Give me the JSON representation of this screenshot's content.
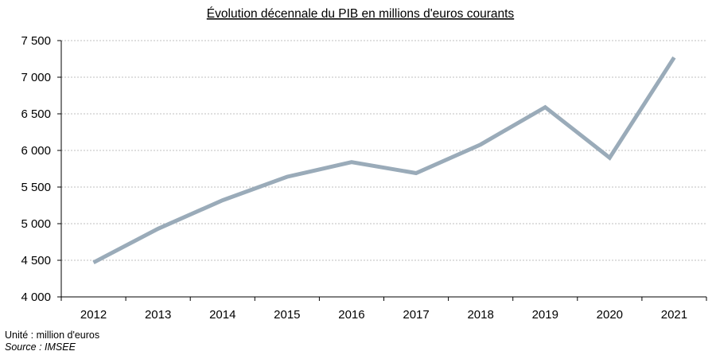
{
  "chart_data": {
    "type": "line",
    "title": "Évolution décennale du PIB en millions d'euros courants",
    "x": [
      "2012",
      "2013",
      "2014",
      "2015",
      "2016",
      "2017",
      "2018",
      "2019",
      "2020",
      "2021"
    ],
    "series": [
      {
        "values": [
          4470,
          4930,
          5320,
          5640,
          5840,
          5690,
          6080,
          6590,
          5900,
          7270
        ]
      }
    ],
    "ylim": [
      4000,
      7500
    ],
    "yticks": [
      4000,
      4500,
      5000,
      5500,
      6000,
      6500,
      7000,
      7500
    ],
    "ytick_labels": [
      "4 000",
      "4 500",
      "5 000",
      "5 500",
      "6 000",
      "6 500",
      "7 000",
      "7 500"
    ],
    "grid": true,
    "line_color": "#9aabb9",
    "grid_color": "#bfbfbf"
  },
  "notes": {
    "unit": "Unité : million d'euros",
    "source": "Source : IMSEE"
  }
}
